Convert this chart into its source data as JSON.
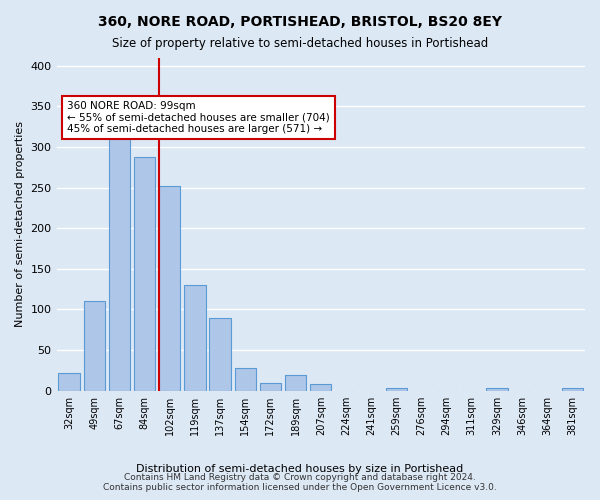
{
  "title": "360, NORE ROAD, PORTISHEAD, BRISTOL, BS20 8EY",
  "subtitle": "Size of property relative to semi-detached houses in Portishead",
  "xlabel": "Distribution of semi-detached houses by size in Portishead",
  "ylabel": "Number of semi-detached properties",
  "categories": [
    "32sqm",
    "49sqm",
    "67sqm",
    "84sqm",
    "102sqm",
    "119sqm",
    "137sqm",
    "154sqm",
    "172sqm",
    "189sqm",
    "207sqm",
    "224sqm",
    "241sqm",
    "259sqm",
    "276sqm",
    "294sqm",
    "311sqm",
    "329sqm",
    "346sqm",
    "364sqm",
    "381sqm"
  ],
  "values": [
    22,
    110,
    330,
    288,
    252,
    130,
    90,
    28,
    10,
    20,
    8,
    0,
    0,
    4,
    0,
    0,
    0,
    4,
    0,
    0,
    4
  ],
  "bar_color": "#aec6e8",
  "bar_edge_color": "#5b9bd5",
  "vline_x_index": 4,
  "vline_color": "#cc0000",
  "annotation_text": "360 NORE ROAD: 99sqm\n← 55% of semi-detached houses are smaller (704)\n45% of semi-detached houses are larger (571) →",
  "annotation_box_color": "#ffffff",
  "annotation_box_edge": "#cc0000",
  "footer": "Contains HM Land Registry data © Crown copyright and database right 2024.\nContains public sector information licensed under the Open Government Licence v3.0.",
  "ylim": [
    0,
    410
  ],
  "yticks": [
    0,
    50,
    100,
    150,
    200,
    250,
    300,
    350,
    400
  ],
  "background_color": "#dde8f5",
  "grid_color": "#ffffff"
}
